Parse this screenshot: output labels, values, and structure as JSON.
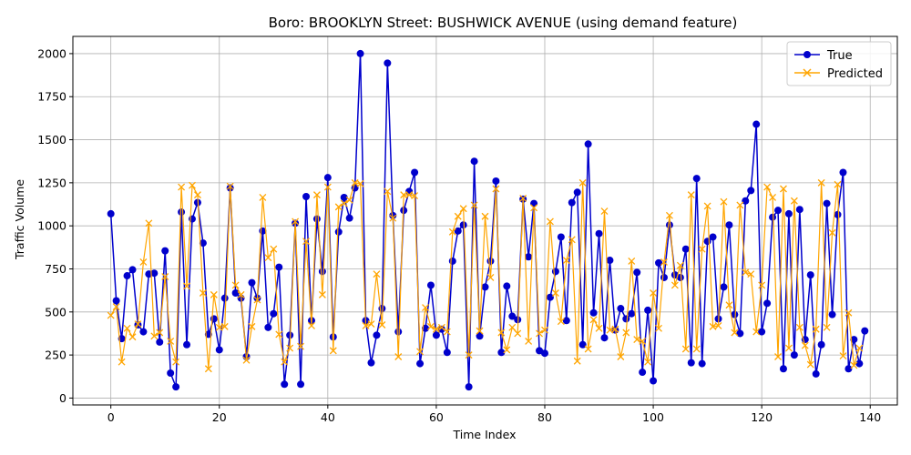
{
  "chart_data": {
    "type": "line",
    "title": "Boro: BROOKLYN Street: BUSHWICK AVENUE (using demand feature)",
    "xlabel": "Time Index",
    "ylabel": "Traffic Volume",
    "xlim": [
      -7,
      145
    ],
    "ylim": [
      -40,
      2100
    ],
    "xticks": [
      0,
      20,
      40,
      60,
      80,
      100,
      120,
      140
    ],
    "yticks": [
      0,
      250,
      500,
      750,
      1000,
      1250,
      1500,
      1750,
      2000
    ],
    "grid": true,
    "legend_position": "top-right",
    "series": [
      {
        "name": "True",
        "color": "#0000cc",
        "marker": "circle",
        "values": [
          1070,
          565,
          345,
          710,
          745,
          425,
          385,
          720,
          725,
          325,
          855,
          145,
          65,
          1080,
          310,
          1040,
          1135,
          900,
          370,
          460,
          280,
          580,
          1220,
          610,
          580,
          240,
          670,
          580,
          970,
          410,
          490,
          760,
          80,
          365,
          1015,
          80,
          1170,
          450,
          1040,
          735,
          1280,
          355,
          965,
          1165,
          1045,
          1220,
          2000,
          450,
          205,
          365,
          520,
          1945,
          1060,
          385,
          1090,
          1200,
          1310,
          200,
          405,
          655,
          365,
          400,
          265,
          795,
          970,
          1005,
          65,
          1375,
          360,
          645,
          795,
          1260,
          265,
          650,
          475,
          455,
          1155,
          820,
          1130,
          275,
          260,
          585,
          735,
          935,
          450,
          1135,
          1195,
          310,
          1475,
          495,
          955,
          350,
          800,
          395,
          520,
          460,
          490,
          730,
          150,
          510,
          100,
          785,
          700,
          1005,
          715,
          700,
          865,
          205,
          1275,
          200,
          910,
          935,
          460,
          645,
          1005,
          485,
          375,
          1145,
          1205,
          1590,
          385,
          550,
          1050,
          1090,
          170,
          1070,
          250,
          1095,
          340,
          715,
          140,
          310,
          1130,
          485,
          1065,
          1310,
          170,
          340,
          200,
          390
        ]
      },
      {
        "name": "Predicted",
        "color": "#ffa500",
        "marker": "x",
        "values": [
          480,
          530,
          210,
          405,
          355,
          430,
          790,
          1015,
          360,
          380,
          705,
          330,
          210,
          1225,
          650,
          1235,
          1180,
          610,
          170,
          600,
          410,
          415,
          1230,
          655,
          600,
          220,
          415,
          570,
          1165,
          815,
          865,
          370,
          210,
          290,
          1025,
          300,
          910,
          420,
          1180,
          600,
          1225,
          275,
          1110,
          1130,
          1150,
          1250,
          1245,
          420,
          430,
          720,
          425,
          1200,
          1045,
          240,
          1180,
          1180,
          1175,
          270,
          525,
          415,
          400,
          410,
          385,
          965,
          1055,
          1100,
          250,
          1120,
          390,
          1055,
          700,
          1215,
          380,
          280,
          410,
          375,
          1160,
          330,
          1105,
          375,
          395,
          1025,
          610,
          445,
          800,
          920,
          215,
          1250,
          285,
          455,
          405,
          1085,
          395,
          400,
          240,
          380,
          795,
          340,
          330,
          210,
          610,
          405,
          790,
          1060,
          655,
          770,
          285,
          1180,
          285,
          865,
          1115,
          415,
          420,
          1140,
          540,
          380,
          1120,
          730,
          720,
          385,
          655,
          1225,
          1165,
          240,
          1215,
          290,
          1145,
          410,
          305,
          195,
          400,
          1250,
          410,
          960,
          1240,
          245,
          495,
          190,
          290
        ]
      }
    ]
  }
}
